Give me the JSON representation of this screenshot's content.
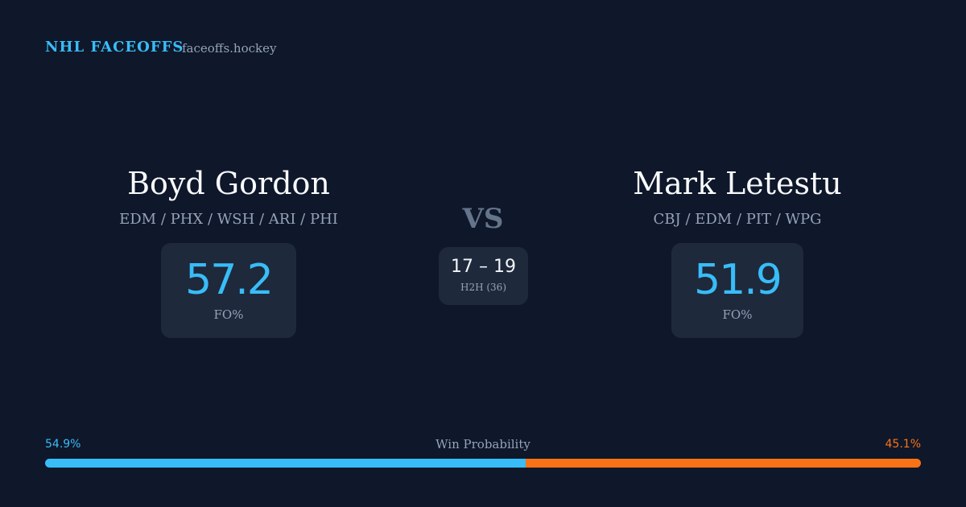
{
  "header": {
    "brand": "NHL FACEOFFS",
    "site": "faceoffs.hockey"
  },
  "players": [
    {
      "name": "Boyd Gordon",
      "teams": "EDM / PHX / WSH / ARI / PHI",
      "fo_pct": 57.2,
      "fo_label": "FO%"
    },
    {
      "name": "Mark Letestu",
      "teams": "CBJ / EDM / PIT / WPG",
      "fo_pct": 51.9,
      "fo_label": "FO%"
    }
  ],
  "vs": "VS",
  "h2h": {
    "score": "17 – 19",
    "label": "H2H (36)"
  },
  "win_probability": {
    "title": "Win Probability",
    "left": {
      "value": 54.9,
      "label": "54.9%",
      "color": "#38bdf8"
    },
    "right": {
      "value": 45.1,
      "label": "45.1%",
      "color": "#f97316"
    }
  }
}
